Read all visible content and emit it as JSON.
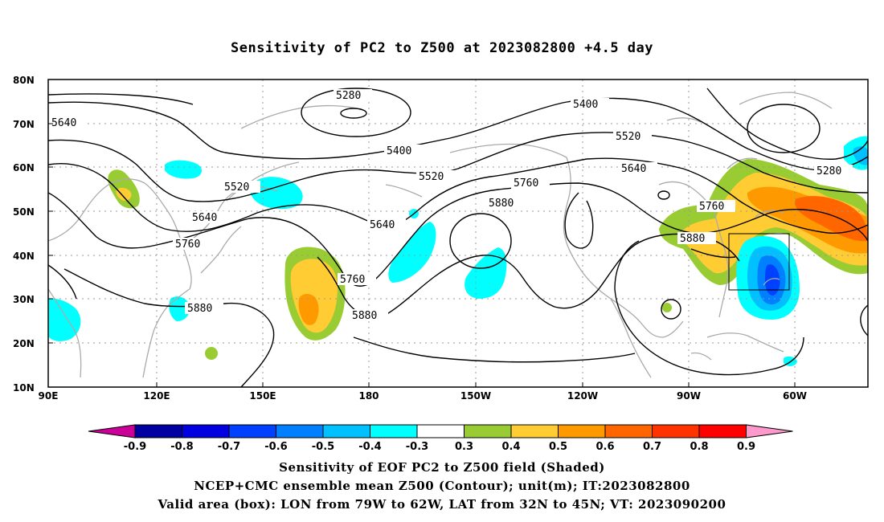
{
  "title": "Sensitivity of PC2 to Z500 at 2023082800 +4.5 day",
  "axes": {
    "lat_labels": [
      "80N",
      "70N",
      "60N",
      "50N",
      "40N",
      "30N",
      "20N",
      "10N"
    ],
    "lon_labels": [
      "90E",
      "120E",
      "150E",
      "180",
      "150W",
      "120W",
      "90W",
      "60W"
    ]
  },
  "contours": [
    {
      "label": "5280",
      "level": 5280
    },
    {
      "label": "5400",
      "level": 5400
    },
    {
      "label": "5520",
      "level": 5520
    },
    {
      "label": "5640",
      "level": 5640
    },
    {
      "label": "5760",
      "level": 5760
    },
    {
      "label": "5880",
      "level": 5880
    }
  ],
  "contour_labels": [
    {
      "text": "5640"
    },
    {
      "text": "5280"
    },
    {
      "text": "5400"
    },
    {
      "text": "5400"
    },
    {
      "text": "5520"
    },
    {
      "text": "5520"
    },
    {
      "text": "5520"
    },
    {
      "text": "5640"
    },
    {
      "text": "5640"
    },
    {
      "text": "5640"
    },
    {
      "text": "5760"
    },
    {
      "text": "5760"
    },
    {
      "text": "5760"
    },
    {
      "text": "5760"
    },
    {
      "text": "5880"
    },
    {
      "text": "5880"
    },
    {
      "text": "5880"
    },
    {
      "text": "5880"
    },
    {
      "text": "5280"
    }
  ],
  "valid_box": {
    "lon_w": "79W",
    "lon_e": "62W",
    "lat_s": "32N",
    "lat_n": "45N"
  },
  "colorbar": {
    "labels": [
      "-0.9",
      "-0.8",
      "-0.7",
      "-0.6",
      "-0.5",
      "-0.4",
      "-0.3",
      "0.3",
      "0.4",
      "0.5",
      "0.6",
      "0.7",
      "0.8",
      "0.9"
    ],
    "colors": [
      "#0000a0",
      "#0000e0",
      "#0040ff",
      "#0080ff",
      "#00c0ff",
      "#00ffff",
      "#ffffff",
      "#99cc33",
      "#ffcc33",
      "#ff9900",
      "#ff6600",
      "#ff3300",
      "#ff0000"
    ],
    "low_end_color": "#cc0099",
    "high_end_color": "#ff99cc"
  },
  "captions": {
    "line1": "Sensitivity of EOF PC2 to Z500 field (Shaded)",
    "line2": "NCEP+CMC ensemble mean Z500 (Contour); unit(m); IT:2023082800",
    "line3": "Valid area (box): LON from 79W to 62W, LAT from 32N to 45N; VT: 2023090200"
  }
}
